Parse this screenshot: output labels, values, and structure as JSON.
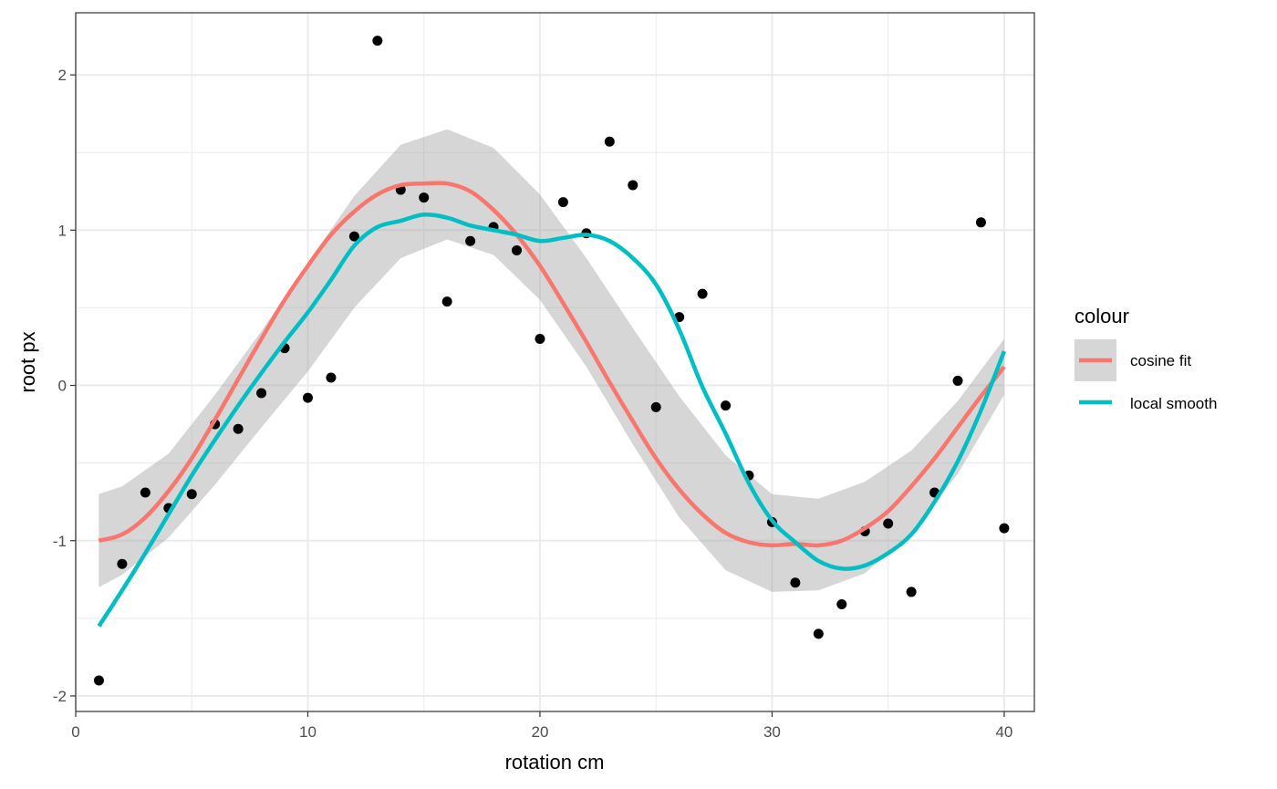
{
  "chart_data": {
    "type": "scatter",
    "xlabel": "rotation cm",
    "ylabel": "root px",
    "xlim": [
      0,
      41.3
    ],
    "ylim": [
      -2.1,
      2.4
    ],
    "x_ticks": [
      0,
      10,
      20,
      30,
      40
    ],
    "y_ticks": [
      -2,
      -1,
      0,
      1,
      2
    ],
    "x_minor": [
      5,
      15,
      25,
      35
    ],
    "y_minor": [
      -1.5,
      -0.5,
      0.5,
      1.5
    ],
    "grid": true,
    "legend": {
      "title": "colour",
      "placement": "right",
      "entries": [
        {
          "label": "cosine fit",
          "color": "#F8766D"
        },
        {
          "label": "local smooth",
          "color": "#00BFC4"
        }
      ]
    },
    "points": {
      "x": [
        1,
        2,
        3,
        4,
        5,
        6,
        7,
        8,
        9,
        10,
        11,
        12,
        13,
        14,
        15,
        16,
        17,
        18,
        19,
        20,
        21,
        22,
        23,
        24,
        25,
        26,
        27,
        28,
        29,
        30,
        31,
        32,
        33,
        34,
        35,
        36,
        37,
        38,
        39,
        40
      ],
      "y": [
        -1.9,
        -1.15,
        -0.69,
        -0.79,
        -0.7,
        -0.25,
        -0.28,
        -0.05,
        0.24,
        -0.08,
        0.05,
        0.96,
        2.22,
        1.26,
        1.21,
        0.54,
        0.93,
        1.02,
        0.87,
        0.3,
        1.18,
        0.98,
        1.57,
        1.29,
        -0.14,
        0.44,
        0.59,
        -0.13,
        -0.58,
        -0.88,
        -1.27,
        -1.6,
        -1.41,
        -0.94,
        -0.89,
        -1.33,
        -0.69,
        0.03,
        1.05,
        -0.92
      ],
      "color": "#000000"
    },
    "series": [
      {
        "name": "cosine fit",
        "color": "#F8766D",
        "x": [
          1,
          2,
          3,
          4,
          5,
          6,
          7,
          8,
          9,
          10,
          11,
          12,
          13,
          14,
          15,
          16,
          17,
          18,
          19,
          20,
          21,
          22,
          23,
          24,
          25,
          26,
          27,
          28,
          29,
          30,
          31,
          32,
          33,
          34,
          35,
          36,
          37,
          38,
          39,
          40
        ],
        "y": [
          -1.0,
          -0.96,
          -0.85,
          -0.68,
          -0.47,
          -0.22,
          0.04,
          0.3,
          0.55,
          0.77,
          0.97,
          1.12,
          1.23,
          1.29,
          1.3,
          1.3,
          1.25,
          1.13,
          0.97,
          0.77,
          0.53,
          0.28,
          0.02,
          -0.23,
          -0.47,
          -0.67,
          -0.83,
          -0.95,
          -1.01,
          -1.03,
          -1.02,
          -1.03,
          -1.0,
          -0.92,
          -0.81,
          -0.65,
          -0.47,
          -0.27,
          -0.07,
          0.12
        ]
      },
      {
        "name": "local smooth",
        "color": "#00BFC4",
        "x": [
          1,
          2,
          3,
          4,
          5,
          6,
          7,
          8,
          9,
          10,
          11,
          12,
          13,
          14,
          15,
          16,
          17,
          18,
          19,
          20,
          21,
          22,
          23,
          24,
          25,
          26,
          27,
          28,
          29,
          30,
          31,
          32,
          33,
          34,
          35,
          36,
          37,
          38,
          39,
          40
        ],
        "y": [
          -1.55,
          -1.32,
          -1.08,
          -0.83,
          -0.58,
          -0.35,
          -0.13,
          0.08,
          0.28,
          0.47,
          0.68,
          0.9,
          1.02,
          1.06,
          1.1,
          1.08,
          1.03,
          1.0,
          0.97,
          0.93,
          0.95,
          0.97,
          0.93,
          0.82,
          0.65,
          0.36,
          -0.01,
          -0.31,
          -0.63,
          -0.87,
          -1.01,
          -1.13,
          -1.18,
          -1.16,
          -1.08,
          -0.96,
          -0.75,
          -0.49,
          -0.16,
          0.22
        ]
      }
    ],
    "confidence_band": {
      "series": "cosine fit",
      "color": "#999999",
      "opacity": 0.4,
      "x": [
        1,
        2,
        4,
        6,
        8,
        10,
        12,
        14,
        16,
        18,
        20,
        22,
        24,
        26,
        28,
        30,
        32,
        34,
        36,
        38,
        40
      ],
      "upper": [
        -0.7,
        -0.65,
        -0.44,
        -0.06,
        0.35,
        0.79,
        1.22,
        1.55,
        1.65,
        1.53,
        1.23,
        0.82,
        0.37,
        -0.07,
        -0.45,
        -0.7,
        -0.73,
        -0.62,
        -0.42,
        -0.1,
        0.3
      ],
      "lower": [
        -1.3,
        -1.22,
        -0.98,
        -0.64,
        -0.27,
        0.09,
        0.5,
        0.82,
        0.94,
        0.84,
        0.55,
        0.12,
        -0.38,
        -0.85,
        -1.19,
        -1.33,
        -1.32,
        -1.21,
        -0.95,
        -0.57,
        -0.06
      ]
    }
  }
}
